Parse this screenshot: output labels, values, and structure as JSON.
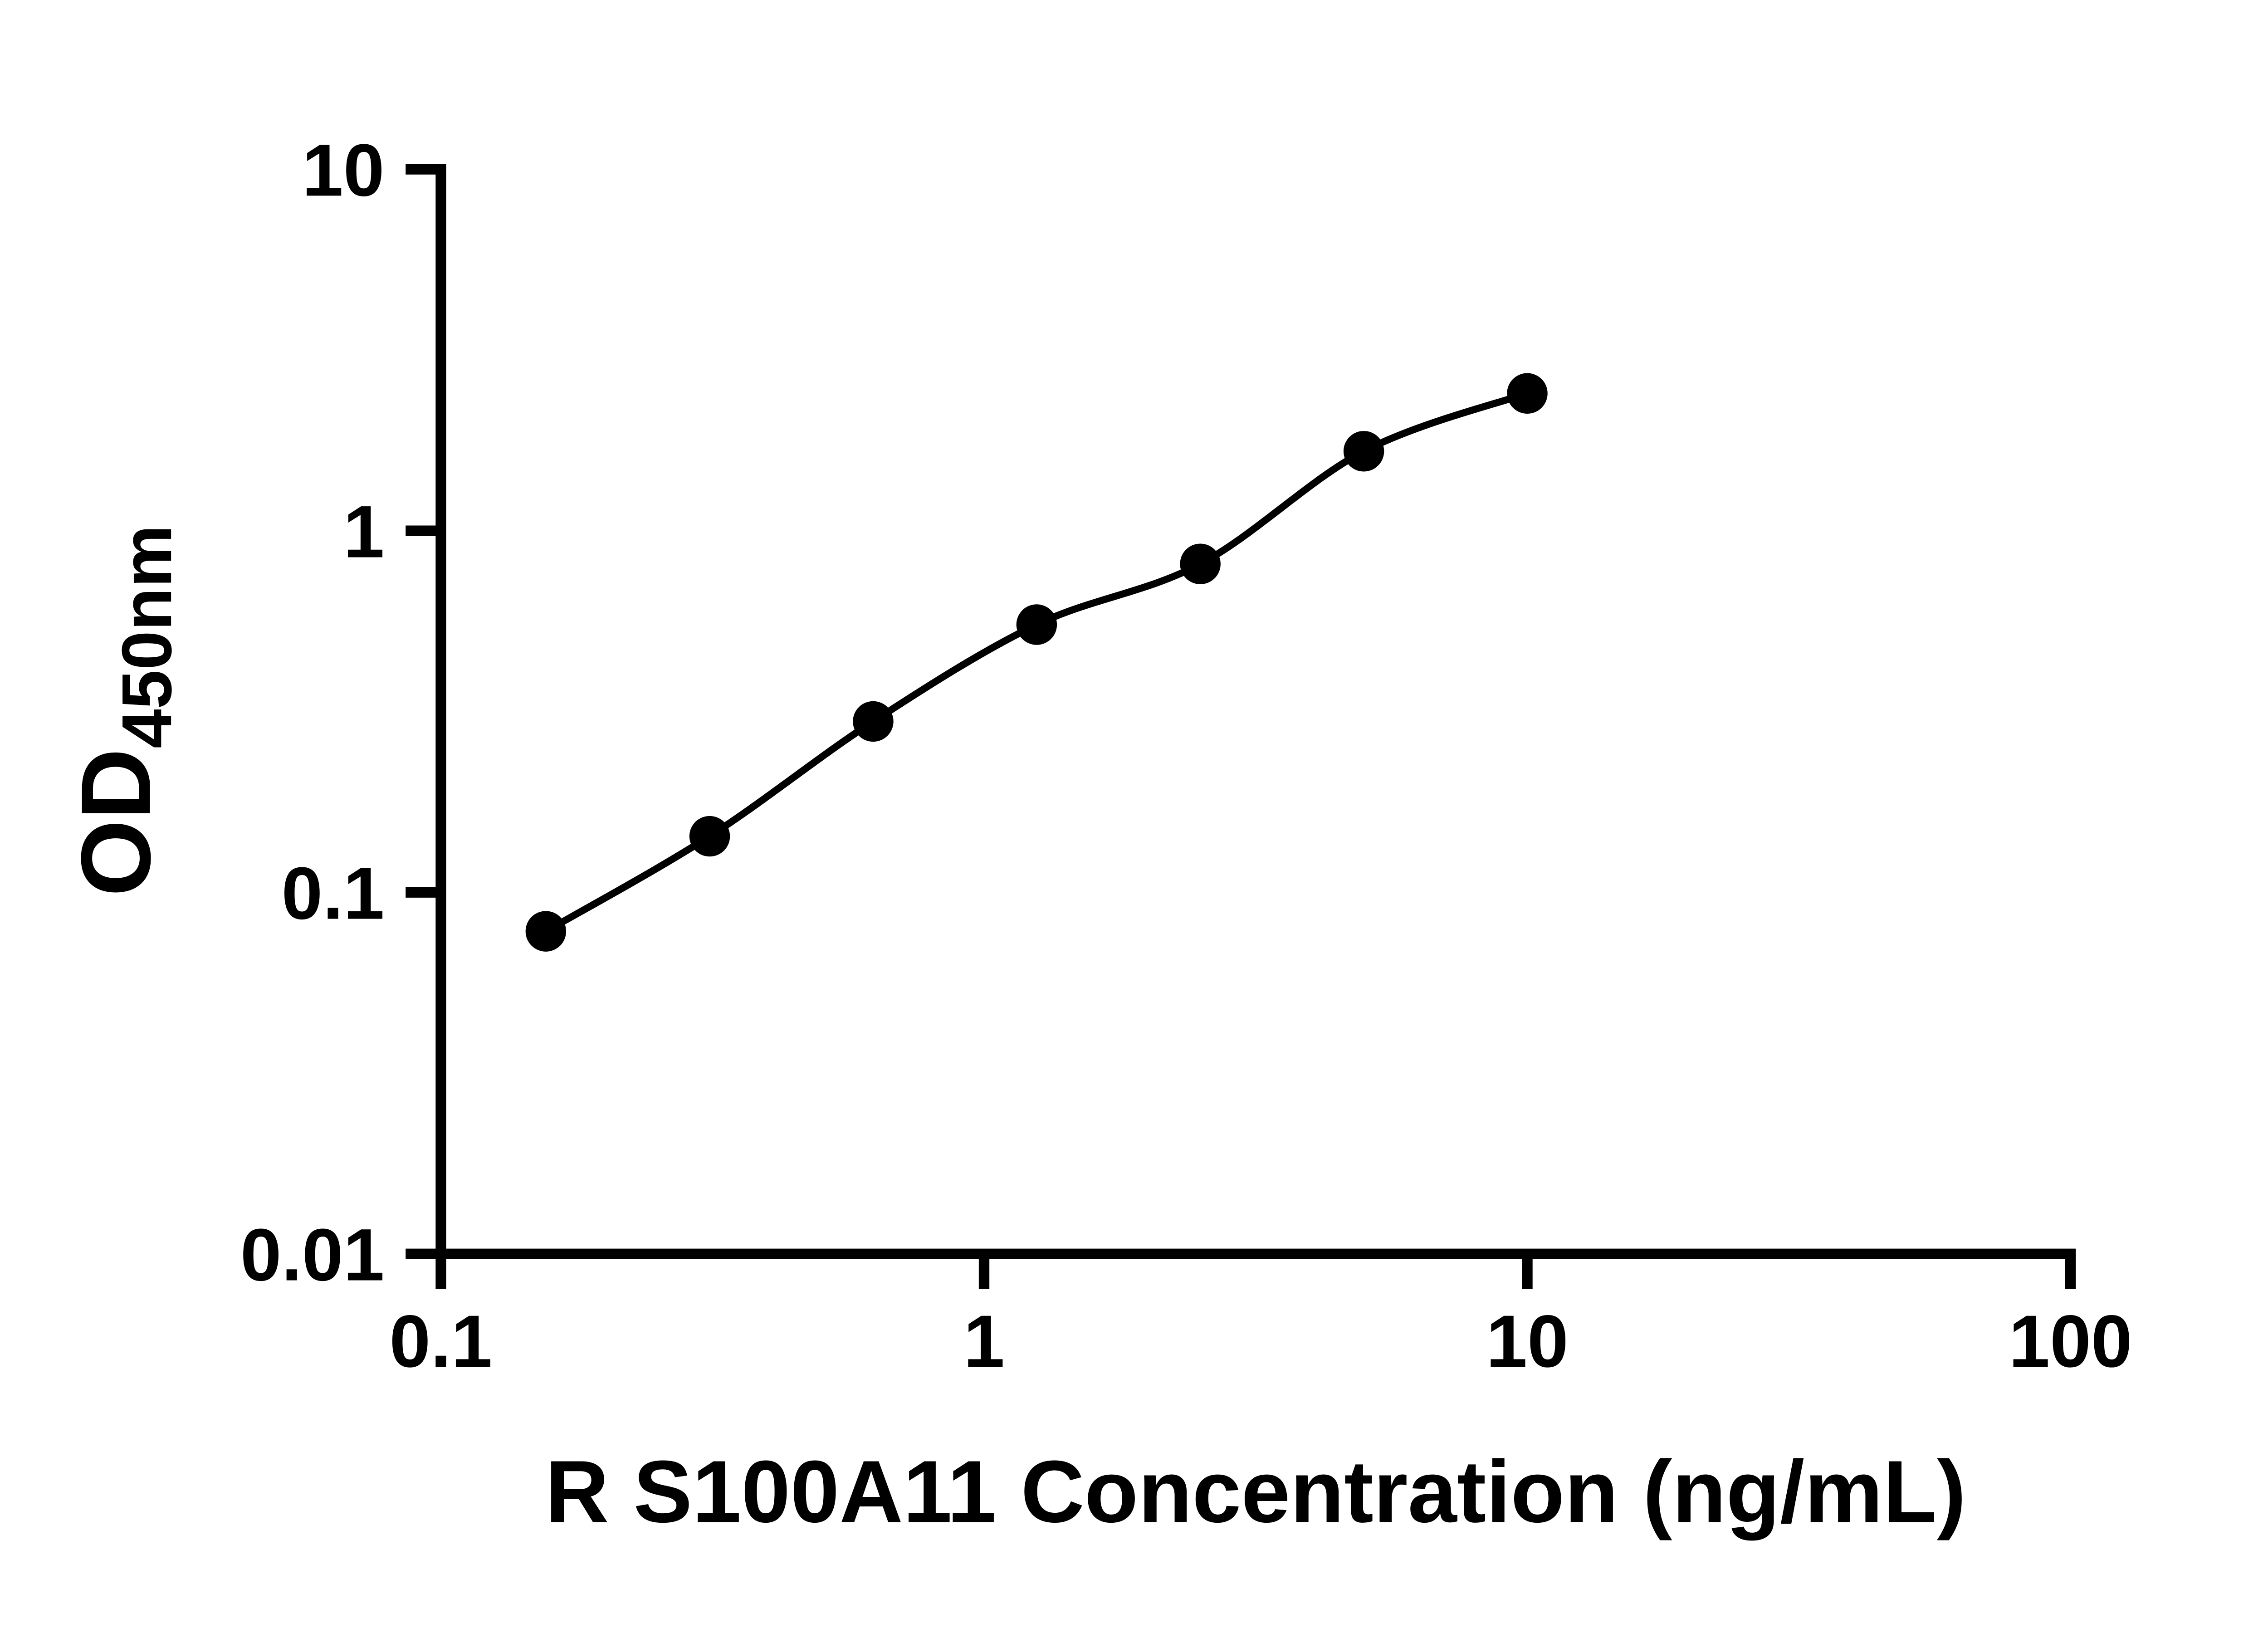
{
  "figure": {
    "background": "#ffffff",
    "foreground": "#000000"
  },
  "chart_data": {
    "type": "scatter",
    "subtype": "log-log standard curve with smooth fit line",
    "title": "",
    "xlabel": "R S100A11 Concentration (ng/mL)",
    "ylabel_main": "OD",
    "ylabel_sub": "450nm",
    "x_scale": "log",
    "y_scale": "log",
    "xlim": [
      0.1,
      100
    ],
    "ylim": [
      0.01,
      10
    ],
    "x_ticks": [
      0.1,
      1,
      10,
      100
    ],
    "x_tick_labels": [
      "0.1",
      "1",
      "10",
      "100"
    ],
    "y_ticks": [
      0.01,
      0.1,
      1,
      10
    ],
    "y_tick_labels": [
      "0.01",
      "0.1",
      "1",
      "10"
    ],
    "x": [
      0.156,
      0.3125,
      0.625,
      1.25,
      2.5,
      5,
      10
    ],
    "y": [
      0.078,
      0.143,
      0.297,
      0.55,
      0.81,
      1.66,
      2.4
    ],
    "grid": false,
    "legend": false,
    "marker": "filled-circle",
    "marker_color": "#000000",
    "line_color": "#000000",
    "axis_color": "#000000"
  }
}
